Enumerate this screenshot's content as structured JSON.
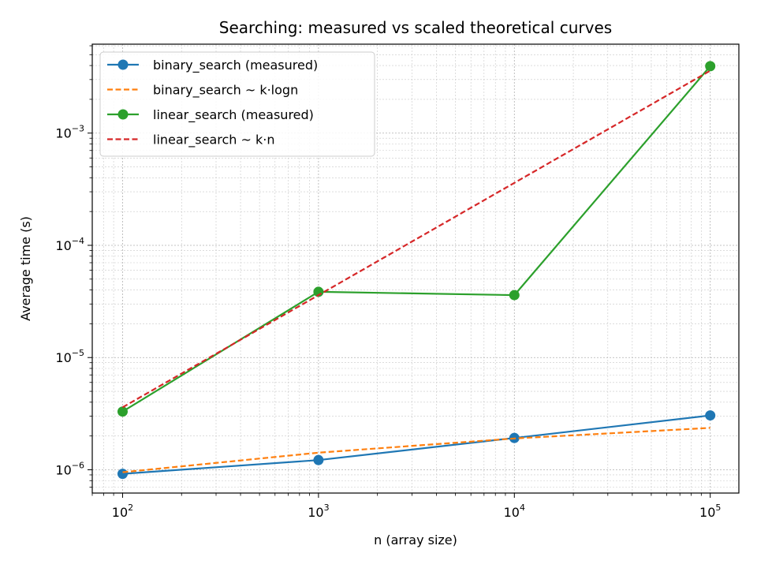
{
  "chart_data": {
    "type": "line",
    "title": "Searching: measured vs scaled theoretical curves",
    "xlabel": "n (array size)",
    "ylabel": "Average time (s)",
    "xscale": "log",
    "yscale": "log",
    "xlim": [
      70,
      140000
    ],
    "ylim": [
      6.2e-07,
      0.0062
    ],
    "xticks": [
      {
        "value": 100,
        "base": "10",
        "exp": "2"
      },
      {
        "value": 1000,
        "base": "10",
        "exp": "3"
      },
      {
        "value": 10000,
        "base": "10",
        "exp": "4"
      },
      {
        "value": 100000,
        "base": "10",
        "exp": "5"
      }
    ],
    "yticks": [
      {
        "value": 1e-06,
        "base": "10",
        "exp": "−6"
      },
      {
        "value": 1e-05,
        "base": "10",
        "exp": "−5"
      },
      {
        "value": 0.0001,
        "base": "10",
        "exp": "−4"
      },
      {
        "value": 0.001,
        "base": "10",
        "exp": "−3"
      }
    ],
    "grid": true,
    "legend_position": "top-left",
    "x": [
      100,
      1000,
      10000,
      100000
    ],
    "series": [
      {
        "name": "binary_search (measured)",
        "color": "#1f77b4",
        "style": "solid",
        "marker": "circle",
        "values": [
          9.2e-07,
          1.22e-06,
          1.92e-06,
          3.05e-06
        ]
      },
      {
        "name": "binary_search ~ k·logn",
        "color": "#ff7f0e",
        "style": "dashed",
        "marker": "none",
        "values": [
          9.5e-07,
          1.42e-06,
          1.9e-06,
          2.36e-06
        ]
      },
      {
        "name": "linear_search (measured)",
        "color": "#2ca02c",
        "style": "solid",
        "marker": "circle",
        "values": [
          3.3e-06,
          3.85e-05,
          3.6e-05,
          0.00395
        ]
      },
      {
        "name": "linear_search ~ k·n",
        "color": "#d62728",
        "style": "dashed",
        "marker": "none",
        "values": [
          3.6e-06,
          3.6e-05,
          0.00036,
          0.0036
        ]
      }
    ]
  }
}
